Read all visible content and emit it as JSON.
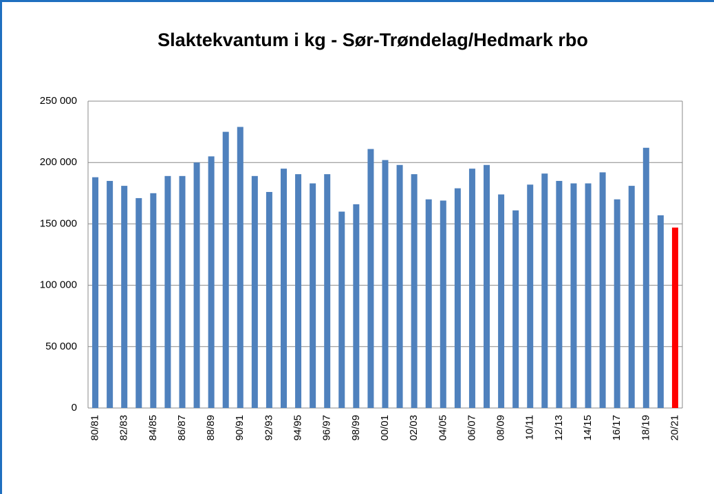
{
  "chart_data": {
    "type": "bar",
    "title": "Slaktekvantum i kg - Sør-Trøndelag/Hedmark rbo",
    "categories": [
      "80/81",
      null,
      "82/83",
      null,
      "84/85",
      null,
      "86/87",
      null,
      "88/89",
      null,
      "90/91",
      null,
      "92/93",
      null,
      "94/95",
      null,
      "96/97",
      null,
      "98/99",
      null,
      "00/01",
      null,
      "02/03",
      null,
      "04/05",
      null,
      "06/07",
      null,
      "08/09",
      null,
      "10/11",
      null,
      "12/13",
      null,
      "14/15",
      null,
      "16/17",
      null,
      "18/19",
      null,
      "20/21"
    ],
    "values": [
      188000,
      185000,
      181000,
      171000,
      175000,
      189000,
      189000,
      200000,
      205000,
      225000,
      229000,
      189000,
      176000,
      195000,
      190500,
      183000,
      190500,
      160000,
      166000,
      211000,
      202000,
      198000,
      190500,
      170000,
      169000,
      179000,
      195000,
      198000,
      174000,
      161000,
      182000,
      191000,
      185000,
      183000,
      183000,
      192000,
      170000,
      181000,
      212000,
      157000,
      147000
    ],
    "colors": [
      "#4f81bd",
      "#4f81bd",
      "#4f81bd",
      "#4f81bd",
      "#4f81bd",
      "#4f81bd",
      "#4f81bd",
      "#4f81bd",
      "#4f81bd",
      "#4f81bd",
      "#4f81bd",
      "#4f81bd",
      "#4f81bd",
      "#4f81bd",
      "#4f81bd",
      "#4f81bd",
      "#4f81bd",
      "#4f81bd",
      "#4f81bd",
      "#4f81bd",
      "#4f81bd",
      "#4f81bd",
      "#4f81bd",
      "#4f81bd",
      "#4f81bd",
      "#4f81bd",
      "#4f81bd",
      "#4f81bd",
      "#4f81bd",
      "#4f81bd",
      "#4f81bd",
      "#4f81bd",
      "#4f81bd",
      "#4f81bd",
      "#4f81bd",
      "#4f81bd",
      "#4f81bd",
      "#4f81bd",
      "#4f81bd",
      "#4f81bd",
      "#ff0000"
    ],
    "ylim": [
      0,
      250000
    ],
    "yticks": [
      0,
      {
        "value": 50000,
        "label": "50 000"
      },
      {
        "value": 100000,
        "label": "100 000"
      },
      {
        "value": 150000,
        "label": "150 000"
      },
      {
        "value": 200000,
        "label": "200 000"
      },
      {
        "value": 250000,
        "label": "250 000"
      }
    ],
    "grid": true
  }
}
